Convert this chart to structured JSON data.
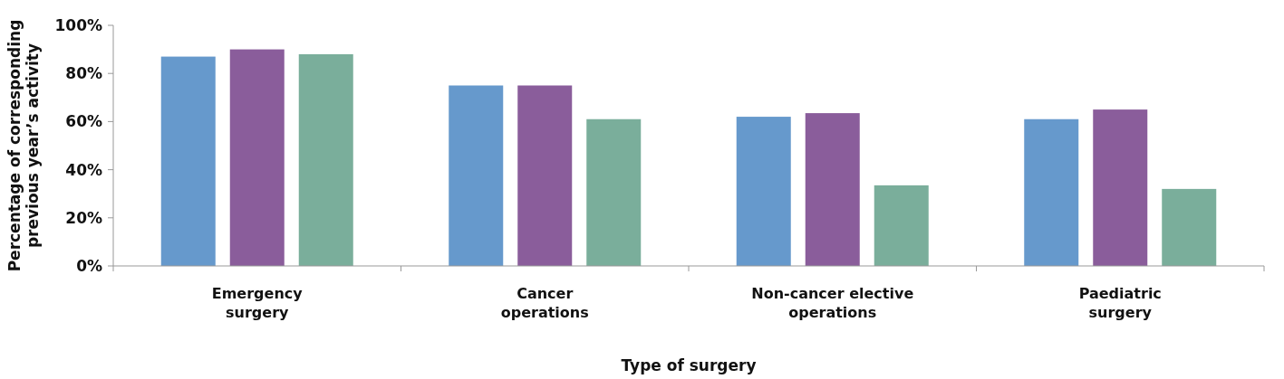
{
  "chart_data": {
    "type": "bar",
    "xlabel": "Type of surgery",
    "ylabel": "Percentage of corresponding previous year’s activity",
    "categories": [
      "Emergency surgery",
      "Cancer operations",
      "Non-cancer elective operations",
      "Paediatric surgery"
    ],
    "series": [
      {
        "color": "#6699cc",
        "values": [
          87,
          75,
          62,
          61
        ]
      },
      {
        "color": "#8a5d9b",
        "values": [
          90,
          75,
          63.5,
          65
        ]
      },
      {
        "color": "#7aae9b",
        "values": [
          88,
          61,
          33.5,
          32
        ]
      }
    ],
    "ylim": [
      0,
      100
    ],
    "yticks": [
      {
        "value": 0,
        "label": "0%"
      },
      {
        "value": 20,
        "label": "20%"
      },
      {
        "value": 40,
        "label": "40%"
      },
      {
        "value": 60,
        "label": "60%"
      },
      {
        "value": 80,
        "label": "80%"
      },
      {
        "value": 100,
        "label": "100%"
      }
    ],
    "grid": false
  }
}
